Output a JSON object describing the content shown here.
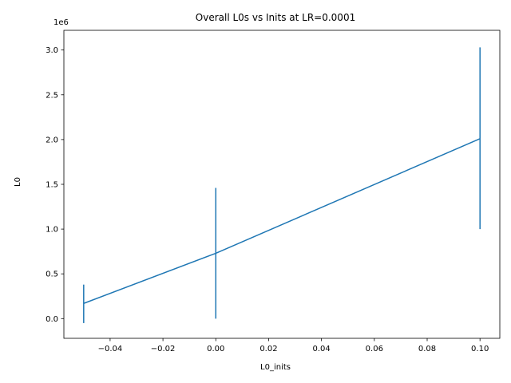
{
  "chart_data": {
    "type": "line",
    "title": "Overall L0s vs Inits at LR=0.0001",
    "xlabel": "L0_inits",
    "ylabel": "L0",
    "y_offset_label": "1e6",
    "x": [
      -0.05,
      0.0,
      0.1
    ],
    "series": [
      {
        "values": [
          170000,
          730000,
          2010000
        ],
        "error_low": [
          -50000,
          0,
          1000000
        ],
        "error_high": [
          380000,
          1460000,
          3030000
        ],
        "color": "#1f77b4"
      }
    ],
    "xlim": [
      -0.0575,
      0.1075
    ],
    "ylim": [
      -220000,
      3220000
    ],
    "xticks": [
      -0.04,
      -0.02,
      0.0,
      0.02,
      0.04,
      0.06,
      0.08,
      0.1
    ],
    "xtick_labels": [
      "−0.04",
      "−0.02",
      "0.00",
      "0.02",
      "0.04",
      "0.06",
      "0.08",
      "0.10"
    ],
    "yticks": [
      0,
      500000,
      1000000,
      1500000,
      2000000,
      2500000,
      3000000
    ],
    "ytick_labels": [
      "0.0",
      "0.5",
      "1.0",
      "1.5",
      "2.0",
      "2.5",
      "3.0"
    ],
    "grid": false,
    "legend": "none"
  }
}
